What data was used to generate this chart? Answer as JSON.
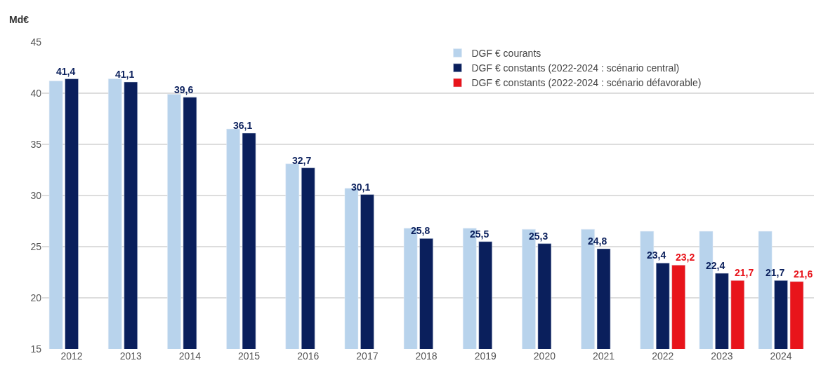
{
  "chart_data": {
    "type": "bar",
    "ylabel": "Md€",
    "categories": [
      "2012",
      "2013",
      "2014",
      "2015",
      "2016",
      "2017",
      "2018",
      "2019",
      "2020",
      "2021",
      "2022",
      "2023",
      "2024"
    ],
    "series": [
      {
        "name": "DGF € courants",
        "color": "#b8d3ec",
        "values": [
          41.2,
          41.4,
          39.9,
          36.5,
          33.1,
          30.7,
          26.8,
          26.8,
          26.7,
          26.7,
          26.5,
          26.5,
          26.5
        ]
      },
      {
        "name": "DGF € constants (2022-2024 : scénario central)",
        "color": "#0a1f5c",
        "values": [
          41.4,
          41.1,
          39.6,
          36.1,
          32.7,
          30.1,
          25.8,
          25.5,
          25.3,
          24.8,
          23.4,
          22.4,
          21.7
        ],
        "value_labels": [
          "41,4",
          "41,1",
          "39,6",
          "36,1",
          "32,7",
          "30,1",
          "25,8",
          "25,5",
          "25,3",
          "24,8",
          "23,4",
          "22,4",
          "21,7"
        ]
      },
      {
        "name": "DGF € constants (2022-2024 : scénario défavorable)",
        "color": "#e8141b",
        "values": [
          null,
          null,
          null,
          null,
          null,
          null,
          null,
          null,
          null,
          null,
          23.2,
          21.7,
          21.6
        ],
        "value_labels": [
          null,
          null,
          null,
          null,
          null,
          null,
          null,
          null,
          null,
          null,
          "23,2",
          "21,7",
          "21,6"
        ]
      }
    ],
    "ylim": [
      15,
      45
    ],
    "yticks": [
      15,
      20,
      25,
      30,
      35,
      40,
      45
    ],
    "grid": "y",
    "legend": "top right"
  }
}
